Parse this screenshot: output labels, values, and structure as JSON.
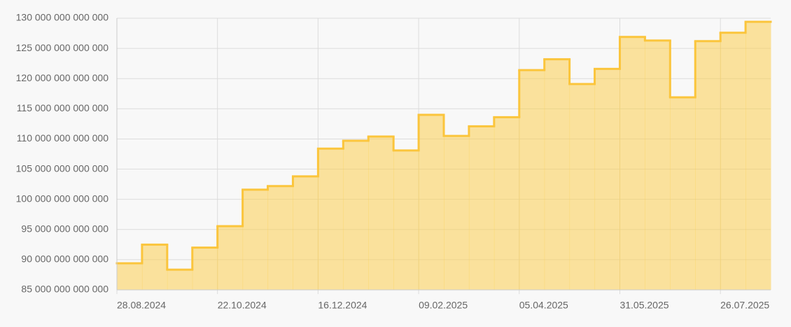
{
  "chart_data": {
    "type": "step-area",
    "categories": [
      "28.08.2024",
      null,
      null,
      null,
      "22.10.2024",
      null,
      null,
      null,
      "16.12.2024",
      null,
      null,
      null,
      "09.02.2025",
      null,
      null,
      null,
      "05.04.2025",
      null,
      null,
      null,
      "31.05.2025",
      null,
      null,
      null,
      "26.07.2025",
      null
    ],
    "values": [
      89400000000000,
      92500000000000,
      88350000000000,
      92000000000000,
      95550000000000,
      101600000000000,
      102200000000000,
      103800000000000,
      108400000000000,
      109700000000000,
      110400000000000,
      108100000000000,
      114000000000000,
      110500000000000,
      112100000000000,
      113600000000000,
      121400000000000,
      123200000000000,
      119100000000000,
      121600000000000,
      126900000000000,
      126300000000000,
      116900000000000,
      126200000000000,
      127600000000000,
      129400000000000
    ],
    "color": "#fbc53c",
    "fill": "rgba(251, 205, 80, 0.55)",
    "ylim": [
      85000000000000,
      130000000000000
    ],
    "yticks": [
      {
        "value": 85000000000000,
        "label": "85 000 000 000 000"
      },
      {
        "value": 90000000000000,
        "label": "90 000 000 000 000"
      },
      {
        "value": 95000000000000,
        "label": "95 000 000 000 000"
      },
      {
        "value": 100000000000000,
        "label": "100 000 000 000 000"
      },
      {
        "value": 105000000000000,
        "label": "105 000 000 000 000"
      },
      {
        "value": 110000000000000,
        "label": "110 000 000 000 000"
      },
      {
        "value": 115000000000000,
        "label": "115 000 000 000 000"
      },
      {
        "value": 120000000000000,
        "label": "120 000 000 000 000"
      },
      {
        "value": 125000000000000,
        "label": "125 000 000 000 000"
      },
      {
        "value": 130000000000000,
        "label": "130 000 000 000 000"
      }
    ],
    "grid": true
  }
}
